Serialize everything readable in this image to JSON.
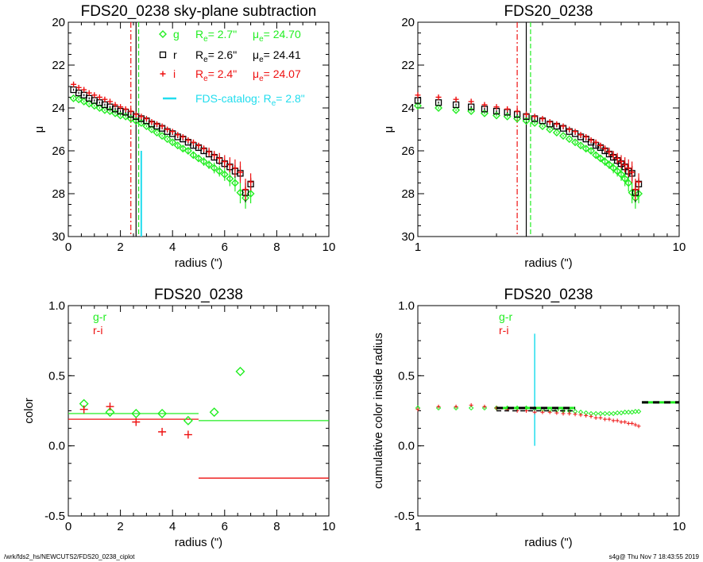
{
  "footer": {
    "left": "/wrk/fds2_hs/NEWCUTS2/FDS20_0238_ciplot",
    "right": "s4g@  Thu Nov  7 18:43:55 2019"
  },
  "colors": {
    "g": "#22ee22",
    "r": "#000000",
    "i": "#ee1111",
    "catalog": "#22ddee",
    "gr": "#22ee22",
    "ri": "#ee1111"
  },
  "chart_data": [
    {
      "type": "scatter",
      "title": "FDS20_0238 sky-plane subtraction",
      "xlabel": "radius (\")",
      "ylabel": "μ",
      "xlim": [
        0,
        10
      ],
      "ylim": [
        30,
        20
      ],
      "xticks": [
        0,
        2,
        4,
        6,
        8,
        10
      ],
      "yticks": [
        20,
        22,
        24,
        26,
        28,
        30
      ],
      "legend": [
        {
          "band": "g",
          "re_label": "R",
          "re_sub": "e",
          "re_value": "=  2.7\"",
          "mu_label": "μ",
          "mu_sub": "e",
          "mu_value": "= 24.70"
        },
        {
          "band": "r",
          "re_label": "R",
          "re_sub": "e",
          "re_value": "=  2.6\"",
          "mu_label": "μ",
          "mu_sub": "e",
          "mu_value": "= 24.41"
        },
        {
          "band": "i",
          "re_label": "R",
          "re_sub": "e",
          "re_value": "=  2.4\"",
          "mu_label": "μ",
          "mu_sub": "e",
          "mu_value": "= 24.07"
        },
        {
          "band": "FDS-catalog",
          "text": "FDS-catalog: R",
          "sub": "e",
          "value": "=  2.8\""
        }
      ],
      "vlines": {
        "g": 2.7,
        "r": 2.6,
        "i": 2.4
      },
      "catalog_re": 2.8,
      "catalog_segment": [
        26.0,
        30.0
      ],
      "series": [
        {
          "name": "g",
          "x": [
            0.2,
            0.4,
            0.6,
            0.8,
            1.0,
            1.2,
            1.4,
            1.6,
            1.8,
            2.0,
            2.2,
            2.4,
            2.6,
            2.8,
            3.0,
            3.2,
            3.4,
            3.6,
            3.8,
            4.0,
            4.2,
            4.4,
            4.6,
            4.8,
            5.0,
            5.2,
            5.4,
            5.6,
            5.8,
            6.0,
            6.2,
            6.4,
            6.6,
            6.8,
            7.0
          ],
          "y": [
            23.55,
            23.6,
            23.7,
            23.8,
            23.9,
            24.0,
            24.1,
            24.15,
            24.25,
            24.35,
            24.4,
            24.5,
            24.6,
            24.7,
            24.85,
            25.0,
            25.15,
            25.3,
            25.45,
            25.6,
            25.75,
            25.9,
            26.0,
            26.2,
            26.35,
            26.5,
            26.65,
            26.8,
            26.95,
            27.1,
            27.3,
            27.5,
            27.95,
            28.2,
            28.0
          ],
          "err": [
            0.05,
            0.05,
            0.05,
            0.05,
            0.05,
            0.05,
            0.05,
            0.05,
            0.05,
            0.05,
            0.05,
            0.05,
            0.05,
            0.05,
            0.05,
            0.05,
            0.05,
            0.05,
            0.05,
            0.08,
            0.08,
            0.1,
            0.12,
            0.14,
            0.16,
            0.2,
            0.2,
            0.25,
            0.25,
            0.3,
            0.35,
            0.4,
            0.5,
            0.5,
            0.45
          ]
        },
        {
          "name": "r",
          "x": [
            0.2,
            0.4,
            0.6,
            0.8,
            1.0,
            1.2,
            1.4,
            1.6,
            1.8,
            2.0,
            2.2,
            2.4,
            2.6,
            2.8,
            3.0,
            3.2,
            3.4,
            3.6,
            3.8,
            4.0,
            4.2,
            4.4,
            4.6,
            4.8,
            5.0,
            5.2,
            5.4,
            5.6,
            5.8,
            6.0,
            6.2,
            6.4,
            6.6,
            6.8,
            7.0
          ],
          "y": [
            23.15,
            23.3,
            23.4,
            23.55,
            23.65,
            23.75,
            23.85,
            23.95,
            24.05,
            24.15,
            24.2,
            24.3,
            24.4,
            24.5,
            24.6,
            24.75,
            24.85,
            24.95,
            25.1,
            25.2,
            25.35,
            25.45,
            25.6,
            25.75,
            25.85,
            26.0,
            26.15,
            26.3,
            26.45,
            26.6,
            26.75,
            26.95,
            27.05,
            27.95,
            27.55
          ],
          "err": [
            0.05,
            0.05,
            0.05,
            0.05,
            0.05,
            0.05,
            0.05,
            0.05,
            0.05,
            0.05,
            0.05,
            0.05,
            0.05,
            0.05,
            0.05,
            0.05,
            0.05,
            0.05,
            0.05,
            0.06,
            0.06,
            0.08,
            0.08,
            0.1,
            0.1,
            0.12,
            0.12,
            0.15,
            0.2,
            0.2,
            0.25,
            0.3,
            0.35,
            0.45,
            0.3
          ]
        },
        {
          "name": "i",
          "x": [
            0.2,
            0.4,
            0.6,
            0.8,
            1.0,
            1.2,
            1.4,
            1.6,
            1.8,
            2.0,
            2.2,
            2.4,
            2.6,
            2.8,
            3.0,
            3.2,
            3.4,
            3.6,
            3.8,
            4.0,
            4.2,
            4.4,
            4.6,
            4.8,
            5.0,
            5.2,
            5.4,
            5.6,
            5.8,
            6.0,
            6.2,
            6.4,
            6.6,
            6.8,
            7.0
          ],
          "y": [
            22.9,
            23.05,
            23.15,
            23.3,
            23.4,
            23.5,
            23.6,
            23.7,
            23.85,
            23.95,
            24.05,
            24.15,
            24.3,
            24.4,
            24.5,
            24.65,
            24.75,
            24.85,
            25.0,
            25.1,
            25.25,
            25.35,
            25.5,
            25.6,
            25.75,
            25.9,
            26.05,
            26.2,
            26.35,
            26.5,
            26.65,
            26.8,
            27.0,
            27.8,
            27.45
          ],
          "err": [
            0.05,
            0.05,
            0.05,
            0.05,
            0.05,
            0.05,
            0.05,
            0.05,
            0.05,
            0.05,
            0.05,
            0.05,
            0.05,
            0.05,
            0.05,
            0.05,
            0.05,
            0.05,
            0.05,
            0.06,
            0.06,
            0.08,
            0.1,
            0.12,
            0.12,
            0.15,
            0.2,
            0.2,
            0.25,
            0.3,
            0.35,
            0.4,
            0.5,
            0.5,
            0.4
          ]
        }
      ]
    },
    {
      "type": "scatter",
      "title": "FDS20_0238",
      "xlabel": "radius (\")",
      "ylabel": "μ",
      "xscale": "log",
      "xlim": [
        1,
        10
      ],
      "ylim": [
        30,
        20
      ],
      "xticks": [
        1,
        10
      ],
      "yticks": [
        20,
        22,
        24,
        26,
        28,
        30
      ],
      "vlines": {
        "g": 2.7,
        "r": 2.6,
        "i": 2.4
      },
      "series_from": 0,
      "min_x": 1.0
    },
    {
      "type": "scatter",
      "title": "FDS20_0238",
      "xlabel": "radius (\")",
      "ylabel": "color",
      "xlim": [
        0,
        10
      ],
      "ylim": [
        -0.5,
        1.0
      ],
      "xticks": [
        0,
        2,
        4,
        6,
        8,
        10
      ],
      "yticks": [
        -0.5,
        0.0,
        0.5,
        1.0
      ],
      "ytick_labels": [
        "-0.5",
        "0.0",
        "0.5",
        "1.0"
      ],
      "legend": [
        {
          "name": "g-r"
        },
        {
          "name": "r-i"
        }
      ],
      "series": [
        {
          "name": "g-r",
          "x": [
            0.6,
            1.6,
            2.6,
            3.6,
            4.6,
            5.6,
            6.6
          ],
          "y": [
            0.3,
            0.24,
            0.23,
            0.23,
            0.18,
            0.24,
            0.53
          ]
        },
        {
          "name": "r-i",
          "x": [
            0.6,
            1.6,
            2.6,
            3.6,
            4.6
          ],
          "y": [
            0.26,
            0.28,
            0.17,
            0.1,
            0.08
          ]
        }
      ],
      "hlines": [
        {
          "series": "g-r",
          "y": 0.23,
          "x": [
            0,
            5
          ]
        },
        {
          "series": "g-r",
          "y": 0.18,
          "x": [
            5,
            10
          ]
        },
        {
          "series": "r-i",
          "y": 0.19,
          "x": [
            0,
            5
          ]
        },
        {
          "series": "r-i",
          "y": -0.23,
          "x": [
            5,
            10
          ]
        }
      ]
    },
    {
      "type": "scatter",
      "title": "FDS20_0238",
      "xlabel": "radius (\")",
      "ylabel": "cumulative color inside radius",
      "xscale": "log",
      "xlim": [
        1,
        10
      ],
      "ylim": [
        -0.5,
        1.0
      ],
      "xticks": [
        1,
        10
      ],
      "yticks": [
        -0.5,
        0.0,
        0.5,
        1.0
      ],
      "ytick_labels": [
        "-0.5",
        "0.0",
        "0.5",
        "1.0"
      ],
      "legend": [
        {
          "name": "g-r"
        },
        {
          "name": "r-i"
        }
      ],
      "catalog_re": 2.8,
      "catalog_segment": [
        0.0,
        0.8
      ],
      "series": [
        {
          "name": "g-r",
          "x": [
            1.0,
            1.2,
            1.4,
            1.6,
            1.8,
            2.0,
            2.2,
            2.4,
            2.6,
            2.8,
            3.0,
            3.2,
            3.4,
            3.6,
            3.8,
            4.0,
            4.2,
            4.4,
            4.6,
            4.8,
            5.0,
            5.2,
            5.4,
            5.6,
            5.8,
            6.0,
            6.2,
            6.4,
            6.6,
            6.8,
            7.0
          ],
          "y": [
            0.27,
            0.27,
            0.27,
            0.27,
            0.27,
            0.27,
            0.27,
            0.27,
            0.27,
            0.265,
            0.26,
            0.255,
            0.255,
            0.25,
            0.25,
            0.245,
            0.24,
            0.235,
            0.23,
            0.23,
            0.23,
            0.23,
            0.23,
            0.23,
            0.235,
            0.235,
            0.24,
            0.24,
            0.24,
            0.245,
            0.245
          ]
        },
        {
          "name": "r-i",
          "x": [
            1.0,
            1.2,
            1.4,
            1.6,
            1.8,
            2.0,
            2.2,
            2.4,
            2.6,
            2.8,
            3.0,
            3.2,
            3.4,
            3.6,
            3.8,
            4.0,
            4.2,
            4.4,
            4.6,
            4.8,
            5.0,
            5.2,
            5.4,
            5.6,
            5.8,
            6.0,
            6.2,
            6.4,
            6.6,
            6.8,
            7.0
          ],
          "y": [
            0.26,
            0.28,
            0.28,
            0.29,
            0.28,
            0.27,
            0.26,
            0.25,
            0.25,
            0.24,
            0.24,
            0.24,
            0.235,
            0.23,
            0.23,
            0.225,
            0.22,
            0.215,
            0.21,
            0.2,
            0.2,
            0.19,
            0.19,
            0.18,
            0.18,
            0.17,
            0.17,
            0.16,
            0.16,
            0.15,
            0.14
          ]
        }
      ],
      "hlines": [
        {
          "series": "g-r",
          "y": 0.27,
          "x": [
            2,
            4
          ]
        },
        {
          "series": "g-r",
          "y": 0.31,
          "x": [
            7.2,
            10
          ]
        },
        {
          "series": "r-i",
          "y": 0.25,
          "x": [
            2,
            4
          ]
        }
      ]
    }
  ]
}
